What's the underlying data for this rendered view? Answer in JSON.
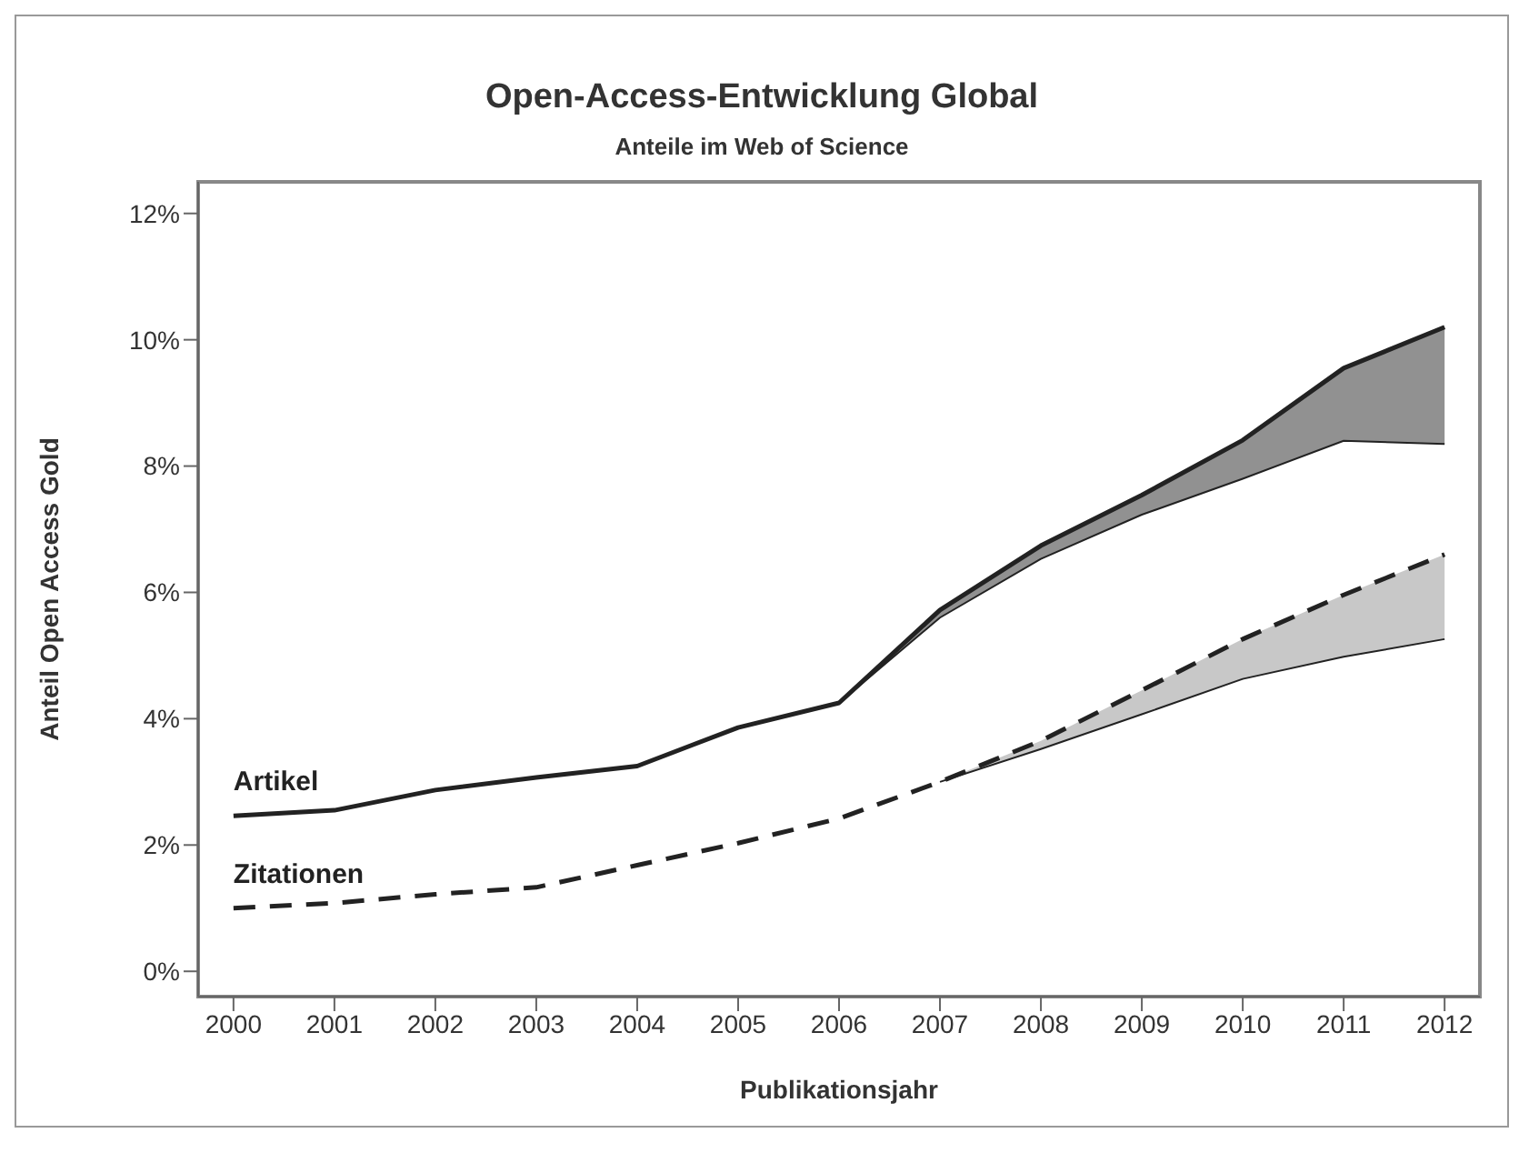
{
  "chart_data": {
    "type": "line",
    "title": "Open-Access-Entwicklung Global",
    "subtitle": "Anteile im Web of Science",
    "xlabel": "Publikationsjahr",
    "ylabel": "Anteil Open Access Gold",
    "categories": [
      "2000",
      "2001",
      "2002",
      "2003",
      "2004",
      "2005",
      "2006",
      "2007",
      "2008",
      "2009",
      "2010",
      "2011",
      "2012"
    ],
    "series": [
      {
        "name": "Artikel",
        "color": "#222222",
        "line_style": "solid",
        "values": [
          2.46,
          2.55,
          2.87,
          3.07,
          3.25,
          3.86,
          4.25,
          5.72,
          6.74,
          7.54,
          8.41,
          9.55,
          10.2
        ],
        "lower": [
          null,
          null,
          null,
          null,
          null,
          null,
          4.25,
          5.6,
          6.53,
          7.23,
          7.8,
          8.4,
          8.35
        ],
        "upper": [
          null,
          null,
          null,
          null,
          null,
          null,
          4.25,
          5.72,
          6.74,
          7.54,
          8.41,
          9.55,
          10.2
        ]
      },
      {
        "name": "Zitationen",
        "color": "#222222",
        "line_style": "dashed",
        "values": [
          1.0,
          1.08,
          1.22,
          1.33,
          1.68,
          2.03,
          2.42,
          3.0,
          3.65,
          4.45,
          5.26,
          5.96,
          6.6
        ],
        "lower": [
          null,
          null,
          null,
          null,
          null,
          null,
          null,
          3.0,
          3.52,
          4.07,
          4.63,
          4.98,
          5.26
        ],
        "upper": [
          null,
          null,
          null,
          null,
          null,
          null,
          null,
          3.0,
          3.65,
          4.45,
          5.26,
          5.96,
          6.6
        ]
      },
      {
        "color": "#222222",
        "line_style": "solid",
        "values": [
          null,
          null,
          null,
          null,
          null,
          null,
          4.25,
          5.6,
          6.53,
          7.23,
          7.8,
          8.4,
          8.35
        ]
      },
      {
        "color": "#222222",
        "line_style": "solid",
        "values": [
          null,
          null,
          null,
          null,
          null,
          null,
          null,
          3.0,
          3.52,
          4.07,
          4.63,
          4.98,
          5.26
        ]
      }
    ],
    "ylim": [
      -0.4,
      12.5
    ],
    "yticks": [
      {
        "value": 0,
        "label": "0%"
      },
      {
        "value": 2,
        "label": "2%"
      },
      {
        "value": 4,
        "label": "4%"
      },
      {
        "value": 6,
        "label": "6%"
      },
      {
        "value": 8,
        "label": "8%"
      },
      {
        "value": 10,
        "label": "10%"
      },
      {
        "value": 12,
        "label": "12%"
      }
    ],
    "grid": false,
    "legend": false,
    "marker": "none"
  }
}
